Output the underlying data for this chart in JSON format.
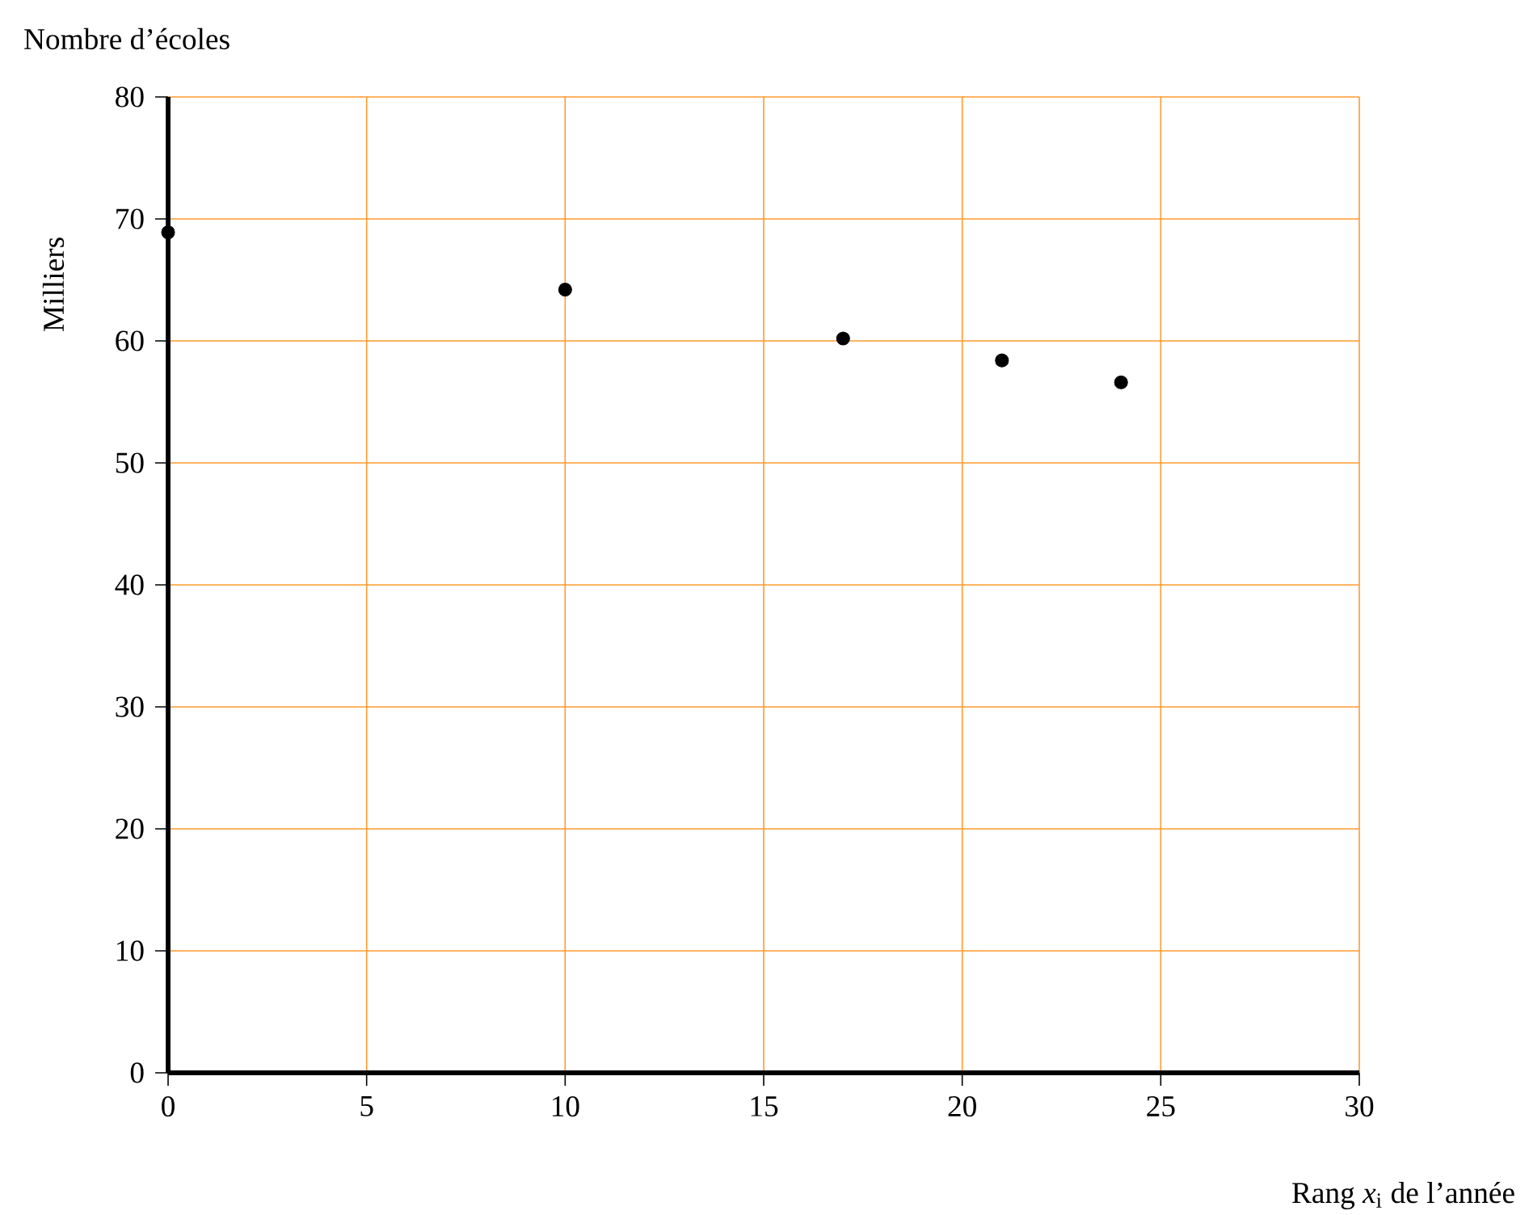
{
  "chart_data": {
    "type": "scatter",
    "title": "Nombre d’écoles",
    "ylabel": "Milliers",
    "xlabel": "Rang *x*$_{i}$ de l’année",
    "x": [
      0,
      10,
      17,
      21,
      24
    ],
    "values": [
      68.9,
      64.2,
      60.2,
      58.4,
      56.6
    ],
    "color": "#000000",
    "marker": "circle",
    "xlim": [
      0,
      30
    ],
    "ylim": [
      0,
      80
    ],
    "xticks": [
      0,
      5,
      10,
      15,
      20,
      25,
      30
    ],
    "yticks": [
      0,
      10,
      20,
      30,
      40,
      50,
      60,
      70,
      80
    ],
    "grid": true
  }
}
